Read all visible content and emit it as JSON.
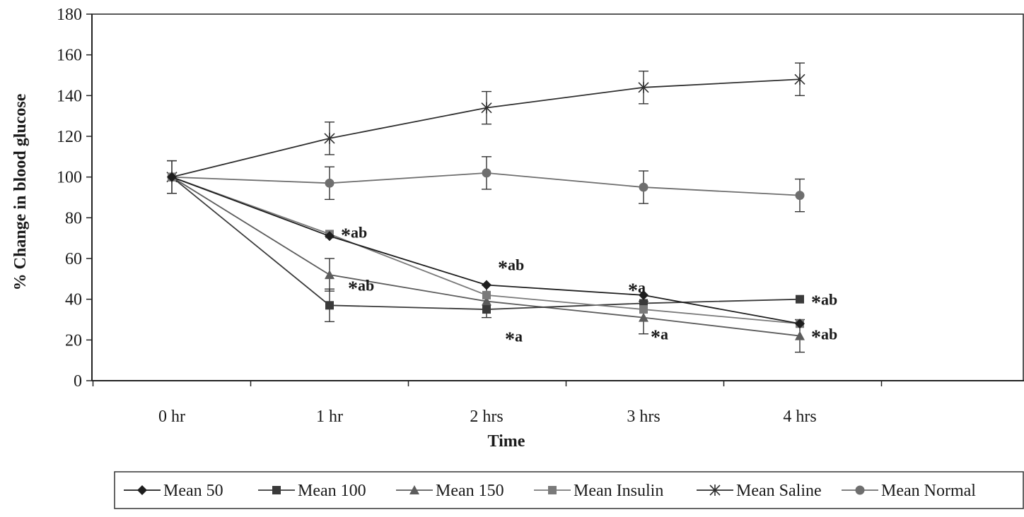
{
  "chart_data": {
    "type": "line",
    "title": "",
    "xlabel": "Time",
    "ylabel": "% Change in blood glucose",
    "categories": [
      "0 hr",
      "1 hr",
      "2 hrs",
      "3 hrs",
      "4 hrs"
    ],
    "ylim": [
      0,
      180
    ],
    "yticks": [
      0,
      20,
      40,
      60,
      80,
      100,
      120,
      140,
      160,
      180
    ],
    "grid": false,
    "legend_position": "bottom",
    "series": [
      {
        "name": "Mean 50",
        "marker": "diamond",
        "color": "#1e1e1e",
        "values": [
          100,
          71,
          47,
          42,
          28
        ],
        "error": [
          0,
          0,
          0,
          0,
          0
        ]
      },
      {
        "name": "Mean 100",
        "marker": "square",
        "color": "#3a3a3a",
        "values": [
          100,
          37,
          35,
          38,
          40
        ],
        "error": [
          0,
          8,
          0,
          0,
          0
        ]
      },
      {
        "name": "Mean 150",
        "marker": "triangle",
        "color": "#5c5c5c",
        "values": [
          100,
          52,
          39,
          31,
          22
        ],
        "error": [
          0,
          8,
          8,
          8,
          8
        ]
      },
      {
        "name": "Mean Insulin",
        "marker": "square",
        "color": "#7a7a7a",
        "values": [
          100,
          72,
          42,
          35,
          28
        ],
        "error": [
          0,
          0,
          0,
          0,
          0
        ]
      },
      {
        "name": "Mean Saline",
        "marker": "star",
        "color": "#2e2e2e",
        "values": [
          100,
          119,
          134,
          144,
          148
        ],
        "error": [
          8,
          8,
          8,
          8,
          8
        ]
      },
      {
        "name": "Mean Normal",
        "marker": "circle",
        "color": "#6e6e6e",
        "values": [
          100,
          97,
          102,
          95,
          91
        ],
        "error": [
          8,
          8,
          8,
          8,
          8
        ]
      }
    ],
    "annotations": [
      {
        "text": "*ab",
        "x": "1 hr",
        "y": 73
      },
      {
        "text": "*ab",
        "x": "1 hr",
        "y": 47
      },
      {
        "text": "*ab",
        "x": "2 hrs",
        "y": 57
      },
      {
        "text": "*a",
        "x": "2 hrs",
        "y": 22
      },
      {
        "text": "*a",
        "x": "3 hrs",
        "y": 46
      },
      {
        "text": "*a",
        "x": "3 hrs",
        "y": 23
      },
      {
        "text": "*ab",
        "x": "4 hrs",
        "y": 40
      },
      {
        "text": "*ab",
        "x": "4 hrs",
        "y": 23
      }
    ]
  }
}
